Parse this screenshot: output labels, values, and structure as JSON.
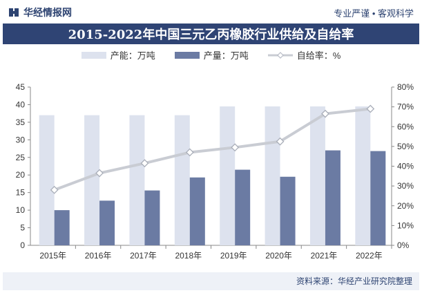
{
  "header": {
    "brand": "华经情报网",
    "tagline": "专业严谨 • 客观科学"
  },
  "title": "2015-2022年中国三元乙丙橡胶行业供给及自给率",
  "legend": {
    "capacity": "产能：万吨",
    "output": "产量：万吨",
    "rate": "自给率：%"
  },
  "source": "资料来源：华经产业研究院整理",
  "colors": {
    "capacity": "#dde2ee",
    "output": "#6b7ba3",
    "rate": "#c9ccd3",
    "title_bg": "#2f4474"
  },
  "chart_data": {
    "type": "bar",
    "categories": [
      "2015年",
      "2016年",
      "2017年",
      "2018年",
      "2019年",
      "2020年",
      "2021年",
      "2022年"
    ],
    "series": [
      {
        "name": "产能：万吨",
        "type": "bar",
        "axis": "left",
        "values": [
          37,
          37,
          37,
          37,
          39.5,
          39.5,
          39.5,
          39.5
        ]
      },
      {
        "name": "产量：万吨",
        "type": "bar",
        "axis": "left",
        "values": [
          10,
          12.7,
          15.6,
          19.3,
          21.5,
          19.5,
          27,
          26.8
        ]
      },
      {
        "name": "自给率：%",
        "type": "line",
        "axis": "right",
        "values": [
          28,
          36.5,
          41.5,
          47,
          49.5,
          52.5,
          66.5,
          69
        ]
      }
    ],
    "ylim_left": [
      0,
      45
    ],
    "yticks_left": [
      "0",
      "5",
      "10",
      "15",
      "20",
      "25",
      "30",
      "35",
      "40",
      "45"
    ],
    "ylim_right": [
      0,
      80
    ],
    "yticks_right": [
      "0%",
      "10%",
      "20%",
      "30%",
      "40%",
      "50%",
      "60%",
      "70%",
      "80%"
    ],
    "grid": false,
    "legend_position": "top"
  }
}
